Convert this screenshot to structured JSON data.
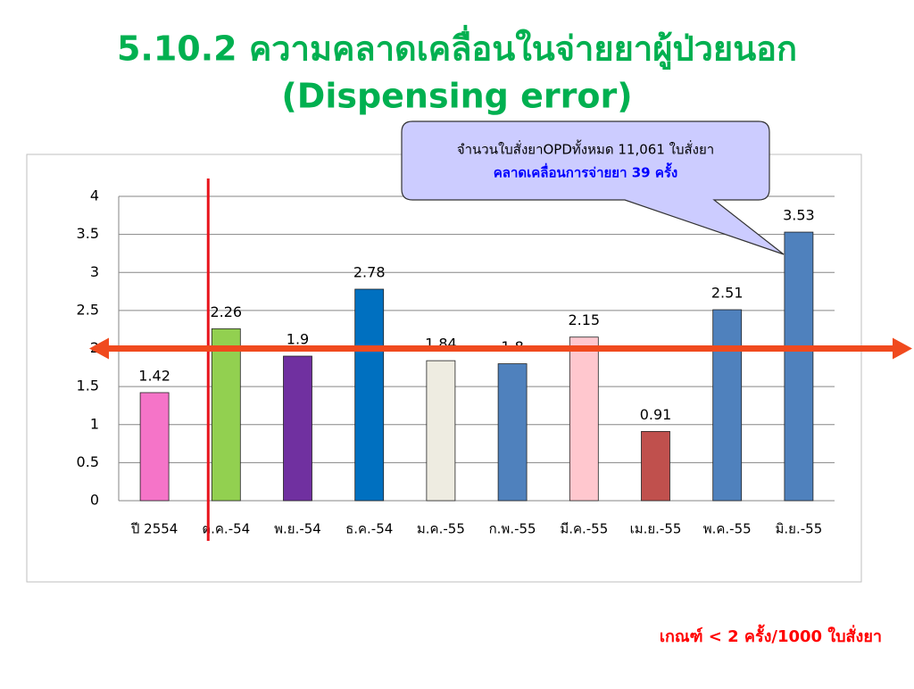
{
  "chart_data": {
    "type": "bar",
    "title": [
      "5.10.2 ความคลาดเคลื่อนในจ่ายยาผู้ป่วยนอก",
      "(Dispensing error)"
    ],
    "callout": [
      "จำนวนใบสั่งยาOPDทั้งหมด 11,061 ใบสั่งยา",
      "คลาดเคลื่อนการจ่ายยา 39 ครั้ง"
    ],
    "note": "เกณฑ์ < 2 ครั้ง/1000 ใบสั่งยา",
    "threshold": 2,
    "categories": [
      "ปี 2554",
      "ต.ค.-54",
      "พ.ย.-54",
      "ธ.ค.-54",
      "ม.ค.-55",
      "ก.พ.-55",
      "มี.ค.-55",
      "เม.ย.-55",
      "พ.ค.-55",
      "มิ.ย.-55"
    ],
    "values": [
      1.42,
      2.26,
      1.9,
      2.78,
      1.84,
      1.8,
      2.15,
      0.91,
      2.51,
      3.53
    ],
    "colors": [
      "#f574c8",
      "#92d050",
      "#7030a0",
      "#0070c0",
      "#eeece1",
      "#4f81bd",
      "#ffc7ce",
      "#c0504d",
      "#4f81bd",
      "#4f81bd"
    ],
    "ylim": [
      0,
      4
    ],
    "yticks": [
      0,
      0.5,
      1,
      1.5,
      2,
      2.5,
      3,
      3.5,
      4
    ],
    "grid": true
  }
}
